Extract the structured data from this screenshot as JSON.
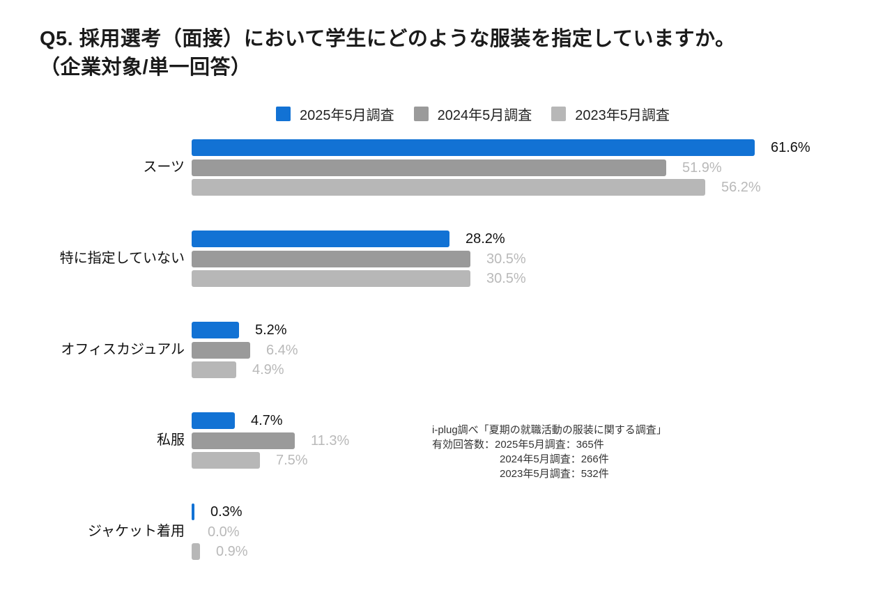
{
  "title": {
    "line1": "Q5. 採用選考（面接）において学生にどのような服装を指定していますか。",
    "line2": "（企業対象/単一回答）"
  },
  "legend": {
    "items": [
      {
        "label": "2025年5月調査",
        "color": "#1272d4"
      },
      {
        "label": "2024年5月調査",
        "color": "#9a9a9a"
      },
      {
        "label": "2023年5月調査",
        "color": "#b7b7b7"
      }
    ]
  },
  "chart_data": {
    "type": "bar",
    "orientation": "horizontal",
    "title": "Q5. 採用選考（面接）において学生にどのような服装を指定していますか。（企業対象/単一回答）",
    "unit": "%",
    "categories": [
      "スーツ",
      "特に指定していない",
      "オフィスカジュアル",
      "私服",
      "ジャケット着用"
    ],
    "series": [
      {
        "name": "2025年5月調査",
        "color": "#1272d4",
        "value_label_color": "#111111",
        "values": [
          61.6,
          28.2,
          5.2,
          4.7,
          0.3
        ]
      },
      {
        "name": "2024年5月調査",
        "color": "#9a9a9a",
        "value_label_color": "#b9b9b9",
        "values": [
          51.9,
          30.5,
          6.4,
          11.3,
          0.0
        ]
      },
      {
        "name": "2023年5月調査",
        "color": "#b7b7b7",
        "value_label_color": "#b9b9b9",
        "values": [
          56.2,
          30.5,
          4.9,
          7.5,
          0.9
        ]
      }
    ],
    "value_label_format": "{value}%",
    "axis_visible": false,
    "grid": false,
    "legend_position": "top"
  },
  "source_note": {
    "lines": [
      "i-plug調べ「夏期の就職活動の服装に関する調査」",
      "有効回答数：2025年5月調査：365件",
      "2024年5月調査：266件",
      "2023年5月調査：532件"
    ]
  }
}
